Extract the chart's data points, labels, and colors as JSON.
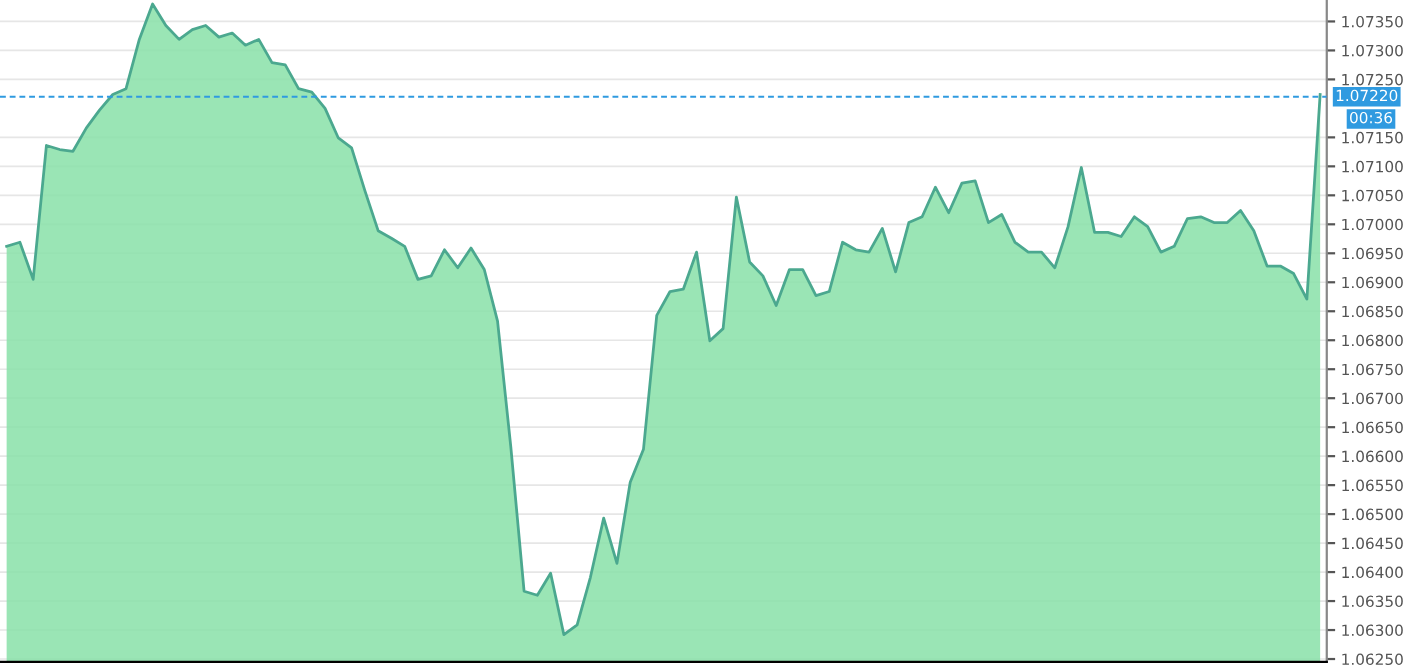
{
  "chart_data": [
    {
      "type": "area",
      "categories": [
        null,
        null,
        null,
        null,
        null,
        null,
        null,
        null,
        null,
        null,
        null,
        null,
        null,
        null,
        null,
        null,
        null,
        null,
        null,
        null,
        null,
        null,
        null,
        null,
        null,
        null,
        null,
        null,
        null,
        null,
        null,
        null,
        null,
        null,
        null,
        null,
        null,
        null,
        null,
        null,
        null,
        null,
        null,
        null,
        null,
        null,
        null,
        null,
        null,
        null,
        null,
        null,
        null,
        null,
        null,
        null,
        null,
        null,
        null,
        null,
        null,
        null,
        null,
        null,
        null,
        null,
        null,
        null,
        null,
        null,
        null,
        null,
        null,
        null,
        null,
        null,
        null,
        null,
        null,
        null,
        null,
        null,
        null,
        null,
        null,
        null,
        null,
        null,
        null,
        null,
        null,
        null,
        null,
        null,
        null,
        null,
        null,
        null,
        null,
        null
      ],
      "series": [
        {
          "color": "#88e0a8",
          "values": [
            1.06962,
            1.06969,
            1.06905,
            1.07136,
            1.07129,
            1.07126,
            1.07166,
            1.07197,
            1.07224,
            1.07234,
            1.07319,
            1.0738,
            1.07343,
            1.07319,
            1.07336,
            1.07343,
            1.07323,
            1.0733,
            1.07309,
            1.07319,
            1.07279,
            1.07275,
            1.07234,
            1.07228,
            1.072,
            1.07149,
            1.07132,
            1.07058,
            1.06989,
            1.06976,
            1.06962,
            1.06905,
            1.06911,
            1.06956,
            1.06925,
            1.06959,
            1.06922,
            1.06833,
            1.06616,
            1.06367,
            1.0636,
            1.06398,
            1.06292,
            1.06309,
            1.06391,
            1.06493,
            1.06415,
            1.06555,
            1.06612,
            1.06843,
            1.06884,
            1.06888,
            1.06952,
            1.06799,
            1.0682,
            1.07047,
            1.06935,
            1.06911,
            1.0686,
            1.06922,
            1.06922,
            1.06877,
            1.06884,
            1.06969,
            1.06956,
            1.06952,
            1.06993,
            1.06918,
            1.07003,
            1.07013,
            1.07064,
            1.0702,
            1.07071,
            1.07075,
            1.07003,
            1.07017,
            1.06969,
            1.06952,
            1.06952,
            1.06925,
            1.06996,
            1.07098,
            1.06986,
            1.06986,
            1.06979,
            1.07013,
            1.06996,
            1.06952,
            1.06962,
            1.0701,
            1.07013,
            1.07003,
            1.07003,
            1.07024,
            1.06989,
            1.06928,
            1.06928,
            1.06915,
            1.06871,
            1.07224
          ]
        }
      ],
      "ylim": [
        1.06245,
        1.07387
      ],
      "yticks": [
        {
          "value": 1.0625,
          "label": "1.06250"
        },
        {
          "value": 1.063,
          "label": "1.06300"
        },
        {
          "value": 1.0635,
          "label": "1.06350"
        },
        {
          "value": 1.064,
          "label": "1.06400"
        },
        {
          "value": 1.0645,
          "label": "1.06450"
        },
        {
          "value": 1.065,
          "label": "1.06500"
        },
        {
          "value": 1.0655,
          "label": "1.06550"
        },
        {
          "value": 1.066,
          "label": "1.06600"
        },
        {
          "value": 1.0665,
          "label": "1.06650"
        },
        {
          "value": 1.067,
          "label": "1.06700"
        },
        {
          "value": 1.0675,
          "label": "1.06750"
        },
        {
          "value": 1.068,
          "label": "1.06800"
        },
        {
          "value": 1.0685,
          "label": "1.06850"
        },
        {
          "value": 1.069,
          "label": "1.06900"
        },
        {
          "value": 1.0695,
          "label": "1.06950"
        },
        {
          "value": 1.07,
          "label": "1.07000"
        },
        {
          "value": 1.0705,
          "label": "1.07050"
        },
        {
          "value": 1.071,
          "label": "1.07100"
        },
        {
          "value": 1.0715,
          "label": "1.07150"
        },
        {
          "value": 1.0725,
          "label": "1.07250"
        },
        {
          "value": 1.073,
          "label": "1.07300"
        },
        {
          "value": 1.0735,
          "label": "1.07350"
        }
      ],
      "ref_lines": [
        {
          "axis": "y",
          "value": 1.0722,
          "label": "1.07220",
          "color": "#2f9ae0",
          "line_style": "dashed"
        }
      ],
      "annotations": [
        "00:36"
      ],
      "grid": "y",
      "tick_labels": "y"
    }
  ]
}
